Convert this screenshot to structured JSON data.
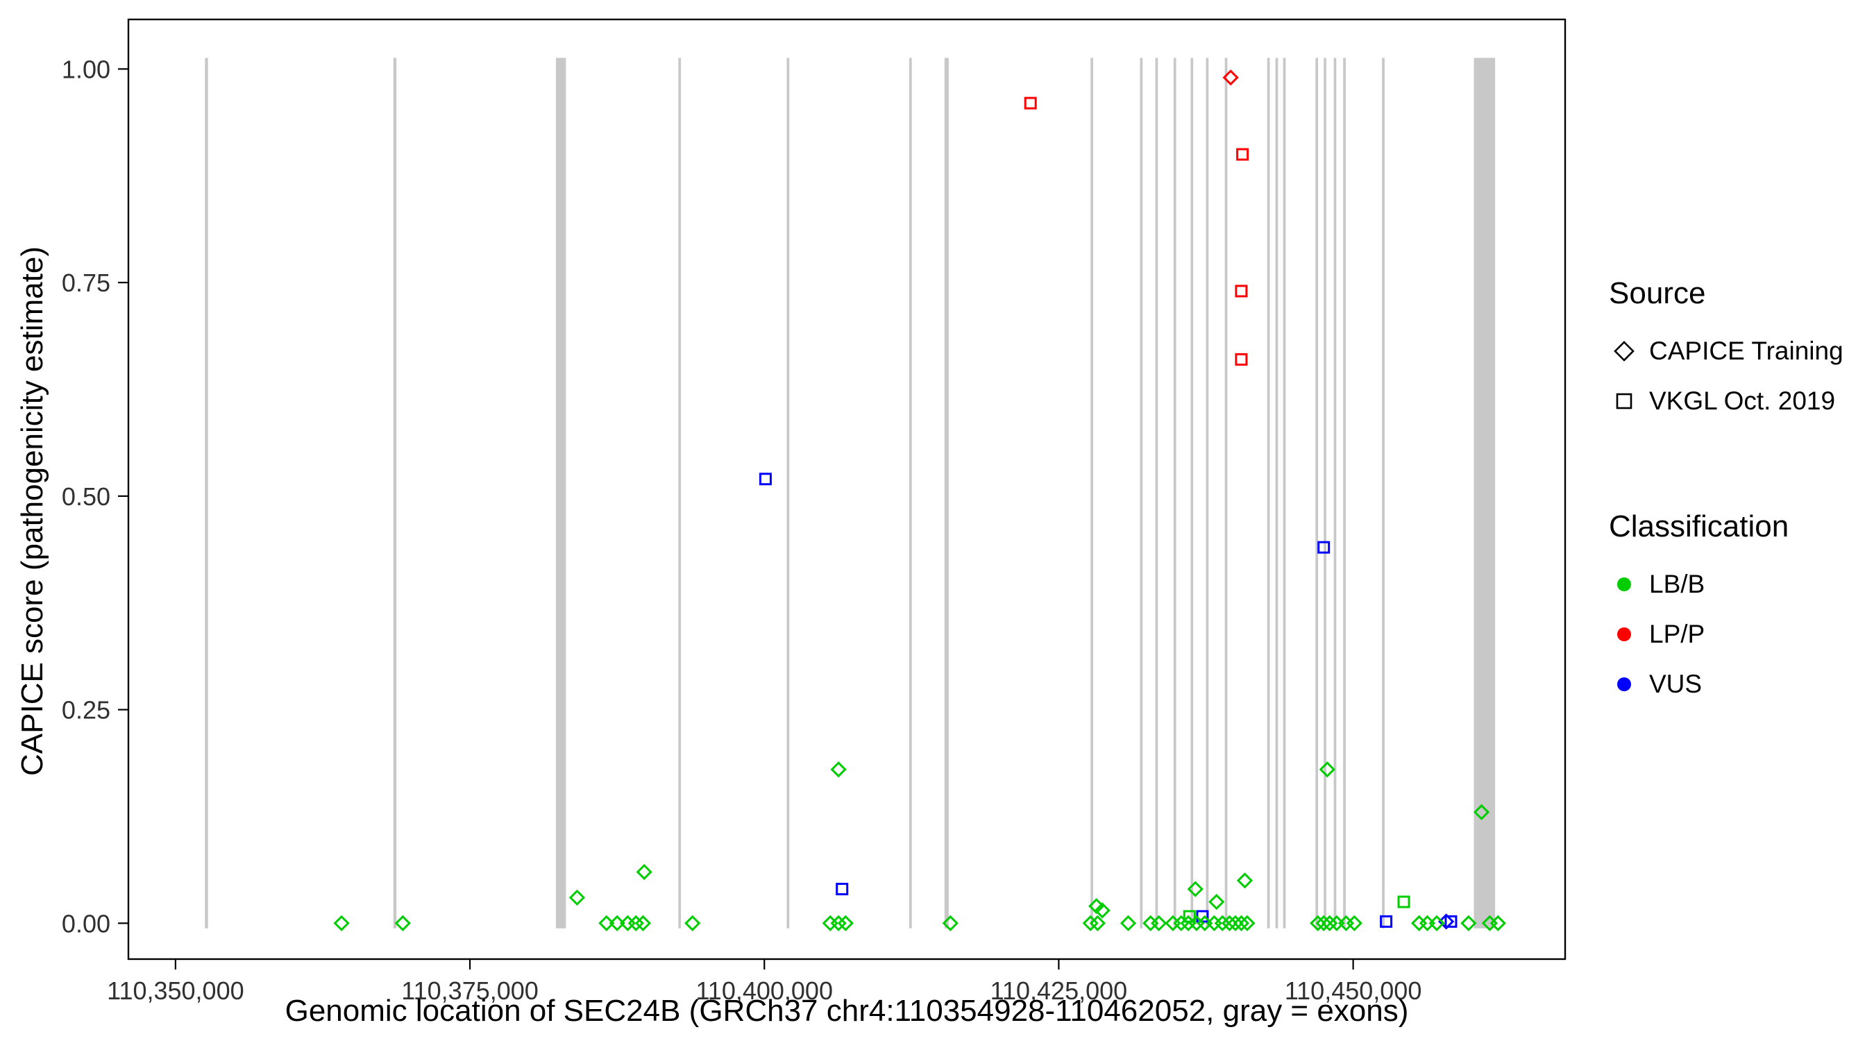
{
  "chart_data": {
    "type": "scatter",
    "xlabel": "Genomic location of SEC24B (GRCh37 chr4:110354928-110462052, gray = exons)",
    "ylabel": "CAPICE score (pathogenicity estimate)",
    "x_domain": [
      110346000,
      110468000
    ],
    "y_domain": [
      -0.042,
      1.058
    ],
    "x_ticks": [
      {
        "value": 110350000,
        "label": "110,350,000"
      },
      {
        "value": 110375000,
        "label": "110,375,000"
      },
      {
        "value": 110400000,
        "label": "110,400,000"
      },
      {
        "value": 110425000,
        "label": "110,425,000"
      },
      {
        "value": 110450000,
        "label": "110,450,000"
      }
    ],
    "y_ticks": [
      {
        "value": 0.0,
        "label": "0.00"
      },
      {
        "value": 0.25,
        "label": "0.25"
      },
      {
        "value": 0.5,
        "label": "0.50"
      },
      {
        "value": 0.75,
        "label": "0.75"
      },
      {
        "value": 1.0,
        "label": "1.00"
      }
    ],
    "exon_color": "#c8c8c8",
    "colors": {
      "LB/B": "#00cd00",
      "LP/P": "#ff0000",
      "VUS": "#0000ff"
    },
    "shapes": {
      "CAPICE Training": "diamond",
      "VKGL Oct. 2019": "square"
    },
    "legends": [
      {
        "title": "Source",
        "items": [
          {
            "label": "CAPICE Training",
            "shape": "diamond"
          },
          {
            "label": "VKGL Oct. 2019",
            "shape": "square"
          }
        ]
      },
      {
        "title": "Classification",
        "items": [
          {
            "label": "LB/B",
            "color": "#00cd00"
          },
          {
            "label": "LP/P",
            "color": "#ff0000"
          },
          {
            "label": "VUS",
            "color": "#0000ff"
          }
        ]
      }
    ],
    "exons": [
      [
        110352500,
        110352760
      ],
      [
        110368500,
        110368760
      ],
      [
        110382300,
        110383150
      ],
      [
        110392700,
        110392920
      ],
      [
        110401900,
        110402120
      ],
      [
        110412300,
        110412520
      ],
      [
        110415300,
        110415660
      ],
      [
        110427700,
        110427920
      ],
      [
        110431900,
        110432120
      ],
      [
        110433200,
        110433420
      ],
      [
        110434750,
        110434970
      ],
      [
        110436200,
        110436420
      ],
      [
        110437500,
        110437720
      ],
      [
        110439100,
        110439320
      ],
      [
        110442700,
        110442920
      ],
      [
        110443400,
        110443620
      ],
      [
        110444050,
        110444270
      ],
      [
        110446800,
        110447020
      ],
      [
        110447500,
        110447720
      ],
      [
        110448350,
        110448570
      ],
      [
        110449150,
        110449370
      ],
      [
        110452450,
        110452670
      ],
      [
        110460250,
        110462052
      ]
    ],
    "points": [
      {
        "source": "VKGL Oct. 2019",
        "classification": "LP/P",
        "x": 110422600,
        "y": 0.96
      },
      {
        "source": "CAPICE Training",
        "classification": "LP/P",
        "x": 110439600,
        "y": 0.99
      },
      {
        "source": "VKGL Oct. 2019",
        "classification": "LP/P",
        "x": 110440600,
        "y": 0.9
      },
      {
        "source": "VKGL Oct. 2019",
        "classification": "LP/P",
        "x": 110440500,
        "y": 0.74
      },
      {
        "source": "VKGL Oct. 2019",
        "classification": "LP/P",
        "x": 110440500,
        "y": 0.66
      },
      {
        "source": "VKGL Oct. 2019",
        "classification": "VUS",
        "x": 110400100,
        "y": 0.52
      },
      {
        "source": "VKGL Oct. 2019",
        "classification": "VUS",
        "x": 110447500,
        "y": 0.44
      },
      {
        "source": "VKGL Oct. 2019",
        "classification": "VUS",
        "x": 110406600,
        "y": 0.04
      },
      {
        "source": "VKGL Oct. 2019",
        "classification": "VUS",
        "x": 110437200,
        "y": 0.008
      },
      {
        "source": "VKGL Oct. 2019",
        "classification": "VUS",
        "x": 110452800,
        "y": 0.002
      },
      {
        "source": "VKGL Oct. 2019",
        "classification": "VUS",
        "x": 110458300,
        "y": 0.002
      },
      {
        "source": "CAPICE Training",
        "classification": "VUS",
        "x": 110457900,
        "y": 0.002
      },
      {
        "source": "CAPICE Training",
        "classification": "LB/B",
        "x": 110406300,
        "y": 0.18
      },
      {
        "source": "CAPICE Training",
        "classification": "LB/B",
        "x": 110447800,
        "y": 0.18
      },
      {
        "source": "CAPICE Training",
        "classification": "LB/B",
        "x": 110460900,
        "y": 0.13
      },
      {
        "source": "CAPICE Training",
        "classification": "LB/B",
        "x": 110389800,
        "y": 0.06
      },
      {
        "source": "CAPICE Training",
        "classification": "LB/B",
        "x": 110384100,
        "y": 0.03
      },
      {
        "source": "CAPICE Training",
        "classification": "LB/B",
        "x": 110436600,
        "y": 0.04
      },
      {
        "source": "CAPICE Training",
        "classification": "LB/B",
        "x": 110440800,
        "y": 0.05
      },
      {
        "source": "CAPICE Training",
        "classification": "LB/B",
        "x": 110428200,
        "y": 0.02
      },
      {
        "source": "CAPICE Training",
        "classification": "LB/B",
        "x": 110428700,
        "y": 0.015
      },
      {
        "source": "CAPICE Training",
        "classification": "LB/B",
        "x": 110438400,
        "y": 0.025
      },
      {
        "source": "VKGL Oct. 2019",
        "classification": "LB/B",
        "x": 110454300,
        "y": 0.025
      },
      {
        "source": "VKGL Oct. 2019",
        "classification": "LB/B",
        "x": 110436100,
        "y": 0.008
      },
      {
        "source": "CAPICE Training",
        "classification": "LB/B",
        "x": 110364100,
        "y": 0.0
      },
      {
        "source": "CAPICE Training",
        "classification": "LB/B",
        "x": 110369300,
        "y": 0.0
      },
      {
        "source": "CAPICE Training",
        "classification": "LB/B",
        "x": 110386600,
        "y": 0.0
      },
      {
        "source": "CAPICE Training",
        "classification": "LB/B",
        "x": 110387500,
        "y": 0.0
      },
      {
        "source": "CAPICE Training",
        "classification": "LB/B",
        "x": 110388400,
        "y": 0.0
      },
      {
        "source": "CAPICE Training",
        "classification": "LB/B",
        "x": 110389100,
        "y": 0.0
      },
      {
        "source": "CAPICE Training",
        "classification": "LB/B",
        "x": 110389700,
        "y": 0.0
      },
      {
        "source": "CAPICE Training",
        "classification": "LB/B",
        "x": 110393900,
        "y": 0.0
      },
      {
        "source": "CAPICE Training",
        "classification": "LB/B",
        "x": 110405600,
        "y": 0.0
      },
      {
        "source": "CAPICE Training",
        "classification": "LB/B",
        "x": 110406300,
        "y": 0.0
      },
      {
        "source": "CAPICE Training",
        "classification": "LB/B",
        "x": 110406900,
        "y": 0.0
      },
      {
        "source": "CAPICE Training",
        "classification": "LB/B",
        "x": 110415800,
        "y": 0.0
      },
      {
        "source": "CAPICE Training",
        "classification": "LB/B",
        "x": 110427700,
        "y": 0.0
      },
      {
        "source": "CAPICE Training",
        "classification": "LB/B",
        "x": 110428300,
        "y": 0.0
      },
      {
        "source": "CAPICE Training",
        "classification": "LB/B",
        "x": 110430900,
        "y": 0.0
      },
      {
        "source": "CAPICE Training",
        "classification": "LB/B",
        "x": 110432800,
        "y": 0.0
      },
      {
        "source": "CAPICE Training",
        "classification": "LB/B",
        "x": 110433500,
        "y": 0.0
      },
      {
        "source": "CAPICE Training",
        "classification": "LB/B",
        "x": 110434700,
        "y": 0.0
      },
      {
        "source": "CAPICE Training",
        "classification": "LB/B",
        "x": 110435400,
        "y": 0.0
      },
      {
        "source": "CAPICE Training",
        "classification": "LB/B",
        "x": 110436000,
        "y": 0.0
      },
      {
        "source": "CAPICE Training",
        "classification": "LB/B",
        "x": 110436700,
        "y": 0.0
      },
      {
        "source": "CAPICE Training",
        "classification": "LB/B",
        "x": 110437400,
        "y": 0.0
      },
      {
        "source": "CAPICE Training",
        "classification": "LB/B",
        "x": 110438200,
        "y": 0.0
      },
      {
        "source": "CAPICE Training",
        "classification": "LB/B",
        "x": 110438900,
        "y": 0.0
      },
      {
        "source": "CAPICE Training",
        "classification": "LB/B",
        "x": 110439500,
        "y": 0.0
      },
      {
        "source": "CAPICE Training",
        "classification": "LB/B",
        "x": 110440000,
        "y": 0.0
      },
      {
        "source": "CAPICE Training",
        "classification": "LB/B",
        "x": 110440500,
        "y": 0.0
      },
      {
        "source": "CAPICE Training",
        "classification": "LB/B",
        "x": 110441000,
        "y": 0.0
      },
      {
        "source": "CAPICE Training",
        "classification": "LB/B",
        "x": 110447000,
        "y": 0.0
      },
      {
        "source": "CAPICE Training",
        "classification": "LB/B",
        "x": 110447500,
        "y": 0.0
      },
      {
        "source": "CAPICE Training",
        "classification": "LB/B",
        "x": 110448000,
        "y": 0.0
      },
      {
        "source": "CAPICE Training",
        "classification": "LB/B",
        "x": 110448600,
        "y": 0.0
      },
      {
        "source": "CAPICE Training",
        "classification": "LB/B",
        "x": 110449400,
        "y": 0.0
      },
      {
        "source": "CAPICE Training",
        "classification": "LB/B",
        "x": 110450100,
        "y": 0.0
      },
      {
        "source": "CAPICE Training",
        "classification": "LB/B",
        "x": 110455600,
        "y": 0.0
      },
      {
        "source": "CAPICE Training",
        "classification": "LB/B",
        "x": 110456300,
        "y": 0.0
      },
      {
        "source": "CAPICE Training",
        "classification": "LB/B",
        "x": 110457100,
        "y": 0.0
      },
      {
        "source": "CAPICE Training",
        "classification": "LB/B",
        "x": 110459800,
        "y": 0.0
      },
      {
        "source": "CAPICE Training",
        "classification": "LB/B",
        "x": 110461600,
        "y": 0.0
      },
      {
        "source": "CAPICE Training",
        "classification": "LB/B",
        "x": 110462300,
        "y": 0.0
      }
    ]
  }
}
